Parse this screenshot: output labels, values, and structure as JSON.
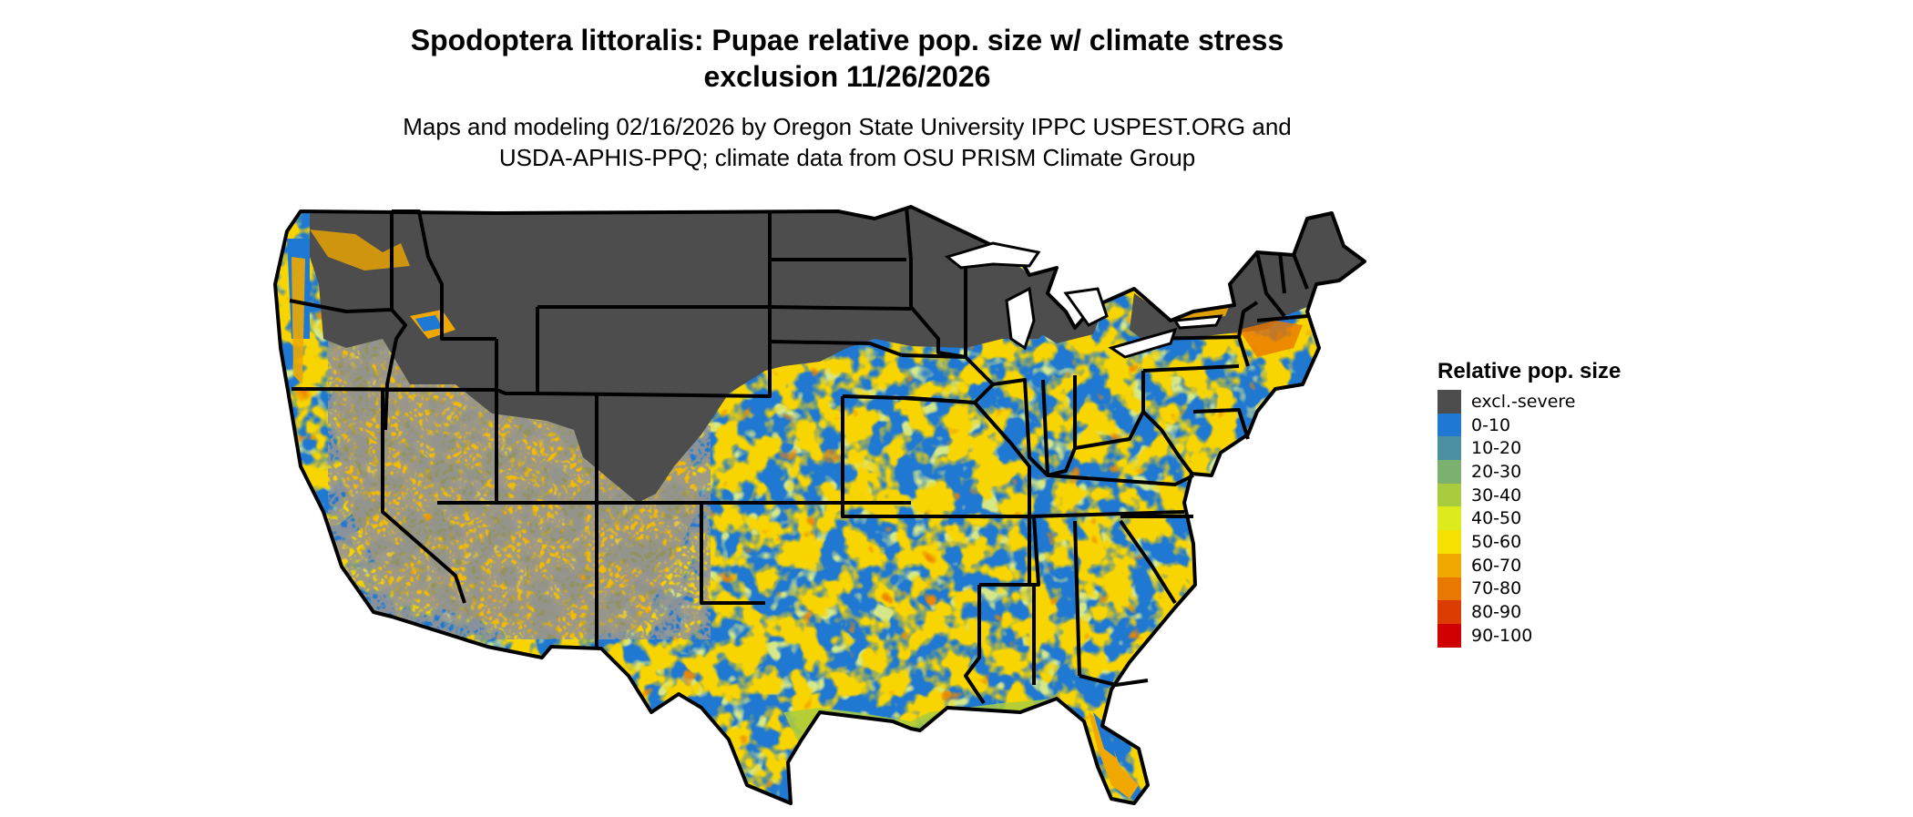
{
  "map": {
    "title_line1": "Spodoptera littoralis: Pupae relative pop. size w/ climate stress",
    "title_line2": "exclusion 11/26/2026",
    "subtitle_line1": "Maps and modeling 02/16/2026 by Oregon State University IPPC USPEST.ORG and",
    "subtitle_line2": "USDA-APHIS-PPQ; climate data from OSU PRISM Climate Group"
  },
  "legend": {
    "title": "Relative pop. size",
    "items": [
      {
        "label": "excl.-severe",
        "color": "#4d4d4d"
      },
      {
        "label": "0-10",
        "color": "#1f78d1"
      },
      {
        "label": "10-20",
        "color": "#4a90a0"
      },
      {
        "label": "20-30",
        "color": "#7bb06e"
      },
      {
        "label": "30-40",
        "color": "#a9cc3f"
      },
      {
        "label": "40-50",
        "color": "#dceb1c"
      },
      {
        "label": "50-60",
        "color": "#f5e000"
      },
      {
        "label": "60-70",
        "color": "#f0a800"
      },
      {
        "label": "70-80",
        "color": "#e87800"
      },
      {
        "label": "80-90",
        "color": "#dc3c00"
      },
      {
        "label": "90-100",
        "color": "#d00000"
      }
    ]
  }
}
